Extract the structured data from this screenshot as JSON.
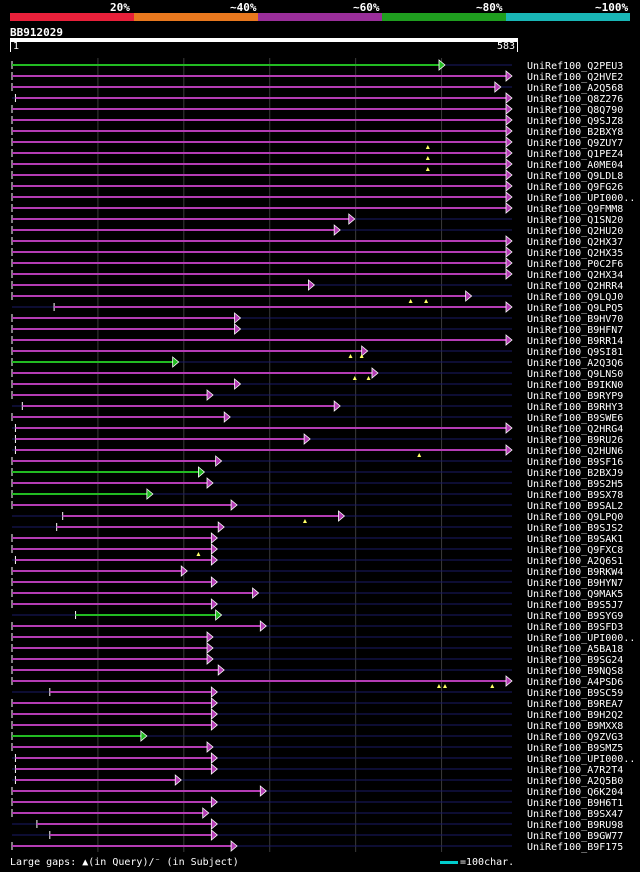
{
  "legend": {
    "labels": [
      "20%",
      "~40%",
      "~60%",
      "~80%",
      "~100%"
    ],
    "colors": [
      "#e8203a",
      "#e8781e",
      "#9a2e9a",
      "#1f9e1f",
      "#19b6b6"
    ]
  },
  "query": {
    "name": "BB912029",
    "start": "1",
    "end": "583",
    "length": 583
  },
  "footer": {
    "gaps_text": "Large gaps: ▲(in Query)/⁻ (in Subject)",
    "scale_text": "=100char."
  },
  "chart_data": {
    "type": "alignment",
    "query_length": 583,
    "hits": [
      {
        "name": "UniRef100_Q2PEU3",
        "start": 1,
        "end": 505,
        "color": "green",
        "gaps": []
      },
      {
        "name": "UniRef100_Q2HVE2",
        "start": 1,
        "end": 583,
        "color": "purple",
        "gaps": []
      },
      {
        "name": "UniRef100_A2Q568",
        "start": 1,
        "end": 570,
        "color": "purple",
        "gaps": []
      },
      {
        "name": "UniRef100_Q8Z276",
        "start": 5,
        "end": 583,
        "color": "purple",
        "gaps": []
      },
      {
        "name": "UniRef100_Q8Q790",
        "start": 1,
        "end": 583,
        "color": "purple",
        "gaps": []
      },
      {
        "name": "UniRef100_Q9SJZ8",
        "start": 1,
        "end": 583,
        "color": "purple",
        "gaps": []
      },
      {
        "name": "UniRef100_B2BXY8",
        "start": 1,
        "end": 583,
        "color": "purple",
        "gaps": []
      },
      {
        "name": "UniRef100_Q9ZUY7",
        "start": 1,
        "end": 583,
        "color": "purple",
        "gaps": [
          485
        ]
      },
      {
        "name": "UniRef100_Q1PEZ4",
        "start": 1,
        "end": 583,
        "color": "purple",
        "gaps": [
          485
        ]
      },
      {
        "name": "UniRef100_A0ME04",
        "start": 1,
        "end": 583,
        "color": "purple",
        "gaps": [
          485
        ]
      },
      {
        "name": "UniRef100_Q9LDL8",
        "start": 1,
        "end": 583,
        "color": "purple",
        "gaps": []
      },
      {
        "name": "UniRef100_Q9FG26",
        "start": 1,
        "end": 583,
        "color": "purple",
        "gaps": []
      },
      {
        "name": "UniRef100_UPI000..",
        "start": 1,
        "end": 583,
        "color": "purple",
        "gaps": []
      },
      {
        "name": "UniRef100_Q9FMM8",
        "start": 1,
        "end": 583,
        "color": "purple",
        "gaps": []
      },
      {
        "name": "UniRef100_Q1SN20",
        "start": 1,
        "end": 400,
        "color": "purple",
        "gaps": []
      },
      {
        "name": "UniRef100_Q2HU20",
        "start": 1,
        "end": 383,
        "color": "purple",
        "gaps": []
      },
      {
        "name": "UniRef100_Q2HX37",
        "start": 1,
        "end": 583,
        "color": "purple",
        "gaps": []
      },
      {
        "name": "UniRef100_Q2HX35",
        "start": 1,
        "end": 583,
        "color": "purple",
        "gaps": []
      },
      {
        "name": "UniRef100_P0C2F6",
        "start": 1,
        "end": 583,
        "color": "purple",
        "gaps": []
      },
      {
        "name": "UniRef100_Q2HX34",
        "start": 1,
        "end": 583,
        "color": "purple",
        "gaps": []
      },
      {
        "name": "UniRef100_Q2HRR4",
        "start": 1,
        "end": 353,
        "color": "purple",
        "gaps": []
      },
      {
        "name": "UniRef100_Q9LQJ0",
        "start": 1,
        "end": 536,
        "color": "purple",
        "gaps": [
          465,
          483
        ]
      },
      {
        "name": "UniRef100_Q9LPQ5",
        "start": 50,
        "end": 583,
        "color": "purple",
        "gaps": []
      },
      {
        "name": "UniRef100_B9HV70",
        "start": 1,
        "end": 267,
        "color": "purple",
        "gaps": []
      },
      {
        "name": "UniRef100_B9HFN7",
        "start": 1,
        "end": 267,
        "color": "purple",
        "gaps": []
      },
      {
        "name": "UniRef100_B9RR14",
        "start": 1,
        "end": 583,
        "color": "purple",
        "gaps": []
      },
      {
        "name": "UniRef100_Q9SI81",
        "start": 1,
        "end": 415,
        "color": "purple",
        "gaps": [
          395,
          408
        ]
      },
      {
        "name": "UniRef100_A2Q3Q6",
        "start": 1,
        "end": 195,
        "color": "green",
        "gaps": []
      },
      {
        "name": "UniRef100_Q9LNS0",
        "start": 1,
        "end": 427,
        "color": "purple",
        "gaps": [
          400,
          416
        ]
      },
      {
        "name": "UniRef100_B9IKN0",
        "start": 1,
        "end": 267,
        "color": "purple",
        "gaps": []
      },
      {
        "name": "UniRef100_B9RYP9",
        "start": 1,
        "end": 235,
        "color": "purple",
        "gaps": []
      },
      {
        "name": "UniRef100_B9RHY3",
        "start": 13,
        "end": 383,
        "color": "purple",
        "gaps": []
      },
      {
        "name": "UniRef100_B9SWE6",
        "start": 1,
        "end": 255,
        "color": "purple",
        "gaps": []
      },
      {
        "name": "UniRef100_Q2HRG4",
        "start": 5,
        "end": 583,
        "color": "purple",
        "gaps": []
      },
      {
        "name": "UniRef100_B9RU26",
        "start": 5,
        "end": 348,
        "color": "purple",
        "gaps": []
      },
      {
        "name": "UniRef100_Q2HUN6",
        "start": 5,
        "end": 583,
        "color": "purple",
        "gaps": [
          475
        ]
      },
      {
        "name": "UniRef100_B9SF16",
        "start": 1,
        "end": 245,
        "color": "purple",
        "gaps": []
      },
      {
        "name": "UniRef100_B2BXJ9",
        "start": 1,
        "end": 225,
        "color": "green",
        "gaps": []
      },
      {
        "name": "UniRef100_B9S2H5",
        "start": 1,
        "end": 235,
        "color": "purple",
        "gaps": []
      },
      {
        "name": "UniRef100_B9SX78",
        "start": 1,
        "end": 165,
        "color": "green",
        "gaps": []
      },
      {
        "name": "UniRef100_B9SAL2",
        "start": 1,
        "end": 263,
        "color": "purple",
        "gaps": []
      },
      {
        "name": "UniRef100_Q9LPQ0",
        "start": 60,
        "end": 388,
        "color": "purple",
        "gaps": [
          342
        ]
      },
      {
        "name": "UniRef100_B9SJS2",
        "start": 53,
        "end": 248,
        "color": "purple",
        "gaps": []
      },
      {
        "name": "UniRef100_B9SAK1",
        "start": 1,
        "end": 240,
        "color": "purple",
        "gaps": []
      },
      {
        "name": "UniRef100_Q9FXC8",
        "start": 1,
        "end": 240,
        "color": "purple",
        "gaps": [
          218
        ]
      },
      {
        "name": "UniRef100_A2Q6S1",
        "start": 5,
        "end": 240,
        "color": "purple",
        "gaps": []
      },
      {
        "name": "UniRef100_B9RKW4",
        "start": 1,
        "end": 205,
        "color": "purple",
        "gaps": []
      },
      {
        "name": "UniRef100_B9HYN7",
        "start": 1,
        "end": 240,
        "color": "purple",
        "gaps": []
      },
      {
        "name": "UniRef100_Q9MAK5",
        "start": 1,
        "end": 288,
        "color": "purple",
        "gaps": []
      },
      {
        "name": "UniRef100_B9S5J7",
        "start": 1,
        "end": 240,
        "color": "purple",
        "gaps": []
      },
      {
        "name": "UniRef100_B9SYG9",
        "start": 75,
        "end": 245,
        "color": "green",
        "gaps": []
      },
      {
        "name": "UniRef100_B9SFD3",
        "start": 1,
        "end": 297,
        "color": "purple",
        "gaps": []
      },
      {
        "name": "UniRef100_UPI000..",
        "start": 1,
        "end": 235,
        "color": "purple",
        "gaps": []
      },
      {
        "name": "UniRef100_A5BA18",
        "start": 1,
        "end": 235,
        "color": "purple",
        "gaps": []
      },
      {
        "name": "UniRef100_B9SG24",
        "start": 1,
        "end": 235,
        "color": "purple",
        "gaps": []
      },
      {
        "name": "UniRef100_B9NQS8",
        "start": 1,
        "end": 248,
        "color": "purple",
        "gaps": []
      },
      {
        "name": "UniRef100_A4PSD6",
        "start": 1,
        "end": 583,
        "color": "purple",
        "gaps": [
          498,
          505,
          560
        ]
      },
      {
        "name": "UniRef100_B9SC59",
        "start": 45,
        "end": 240,
        "color": "purple",
        "gaps": []
      },
      {
        "name": "UniRef100_B9REA7",
        "start": 1,
        "end": 240,
        "color": "purple",
        "gaps": []
      },
      {
        "name": "UniRef100_B9H2Q2",
        "start": 1,
        "end": 240,
        "color": "purple",
        "gaps": []
      },
      {
        "name": "UniRef100_B9MXX8",
        "start": 1,
        "end": 240,
        "color": "purple",
        "gaps": []
      },
      {
        "name": "UniRef100_Q9ZVG3",
        "start": 1,
        "end": 158,
        "color": "green",
        "gaps": []
      },
      {
        "name": "UniRef100_B9SMZ5",
        "start": 1,
        "end": 235,
        "color": "purple",
        "gaps": []
      },
      {
        "name": "UniRef100_UPI000..",
        "start": 5,
        "end": 240,
        "color": "purple",
        "gaps": []
      },
      {
        "name": "UniRef100_A7R2T4",
        "start": 5,
        "end": 240,
        "color": "purple",
        "gaps": []
      },
      {
        "name": "UniRef100_A2Q5B0",
        "start": 5,
        "end": 198,
        "color": "purple",
        "gaps": []
      },
      {
        "name": "UniRef100_Q6K204",
        "start": 1,
        "end": 297,
        "color": "purple",
        "gaps": []
      },
      {
        "name": "UniRef100_B9H6T1",
        "start": 1,
        "end": 240,
        "color": "purple",
        "gaps": []
      },
      {
        "name": "UniRef100_B9SX47",
        "start": 1,
        "end": 230,
        "color": "purple",
        "gaps": []
      },
      {
        "name": "UniRef100_B9RU98",
        "start": 30,
        "end": 240,
        "color": "purple",
        "gaps": []
      },
      {
        "name": "UniRef100_B9GW77",
        "start": 45,
        "end": 240,
        "color": "purple",
        "gaps": []
      },
      {
        "name": "UniRef100_B9F175",
        "start": 1,
        "end": 263,
        "color": "purple",
        "gaps": []
      }
    ]
  }
}
